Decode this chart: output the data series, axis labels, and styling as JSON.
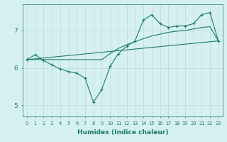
{
  "xlabel": "Humidex (Indice chaleur)",
  "background_color": "#d6f0ef",
  "grid_color": "#c0dedd",
  "line_color": "#1a7a6e",
  "xlim": [
    -0.5,
    23.5
  ],
  "ylim": [
    4.7,
    7.7
  ],
  "yticks": [
    5,
    6,
    7
  ],
  "xticks": [
    0,
    1,
    2,
    3,
    4,
    5,
    6,
    7,
    8,
    9,
    10,
    11,
    12,
    13,
    14,
    15,
    16,
    17,
    18,
    19,
    20,
    21,
    22,
    23
  ],
  "line1_x": [
    0,
    1,
    2,
    3,
    4,
    5,
    6,
    7,
    8,
    9,
    10,
    11,
    12,
    13,
    14,
    15,
    16,
    17,
    18,
    19,
    20,
    21,
    22,
    23
  ],
  "line1_y": [
    6.22,
    6.35,
    6.2,
    6.08,
    5.97,
    5.9,
    5.86,
    5.72,
    5.08,
    5.42,
    6.04,
    6.38,
    6.58,
    6.72,
    7.28,
    7.42,
    7.18,
    7.08,
    7.12,
    7.12,
    7.18,
    7.42,
    7.48,
    6.72
  ],
  "line2_x": [
    0,
    2,
    9,
    10,
    11,
    12,
    13,
    14,
    15,
    16,
    17,
    18,
    19,
    20,
    21,
    22,
    23
  ],
  "line2_y": [
    6.22,
    6.22,
    6.22,
    6.38,
    6.52,
    6.62,
    6.7,
    6.78,
    6.85,
    6.9,
    6.95,
    6.98,
    7.0,
    7.04,
    7.08,
    7.1,
    6.72
  ],
  "line3_x": [
    0,
    23
  ],
  "line3_y": [
    6.22,
    6.72
  ]
}
